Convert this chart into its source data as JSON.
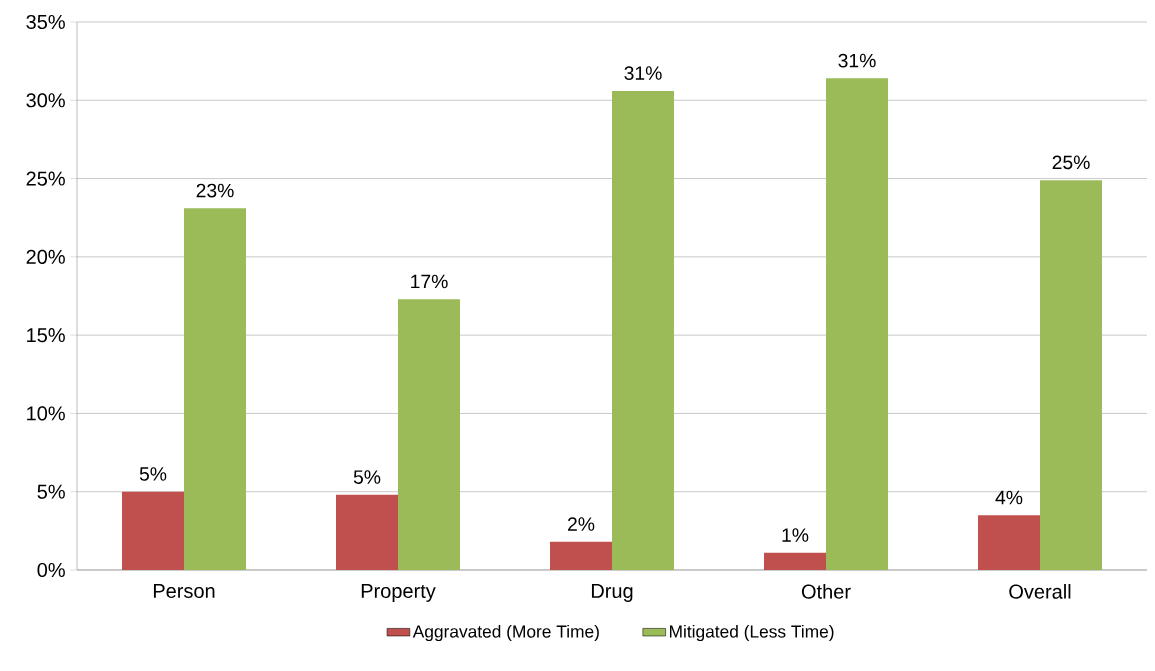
{
  "chart_data": {
    "type": "bar",
    "categories": [
      "Person",
      "Property",
      "Drug",
      "Other",
      "Overall"
    ],
    "series": [
      {
        "name": "Aggravated (More Time)",
        "color": "#c0504d",
        "values": [
          5.0,
          4.8,
          1.8,
          1.1,
          3.5
        ],
        "value_labels": [
          "5%",
          "5%",
          "2%",
          "1%",
          "4%"
        ]
      },
      {
        "name": "Mitigated (Less Time)",
        "color": "#9bbb59",
        "values": [
          23.1,
          17.3,
          30.6,
          31.4,
          24.9
        ],
        "value_labels": [
          "23%",
          "17%",
          "31%",
          "31%",
          "25%"
        ]
      }
    ],
    "ylim": [
      0,
      35
    ],
    "yticks": [
      {
        "value": 0,
        "label": "0%"
      },
      {
        "value": 5,
        "label": "5%"
      },
      {
        "value": 10,
        "label": "10%"
      },
      {
        "value": 15,
        "label": "15%"
      },
      {
        "value": 20,
        "label": "20%"
      },
      {
        "value": 25,
        "label": "25%"
      },
      {
        "value": 30,
        "label": "30%"
      },
      {
        "value": 35,
        "label": "35%"
      }
    ],
    "grid": "y",
    "legend": "bottom"
  }
}
